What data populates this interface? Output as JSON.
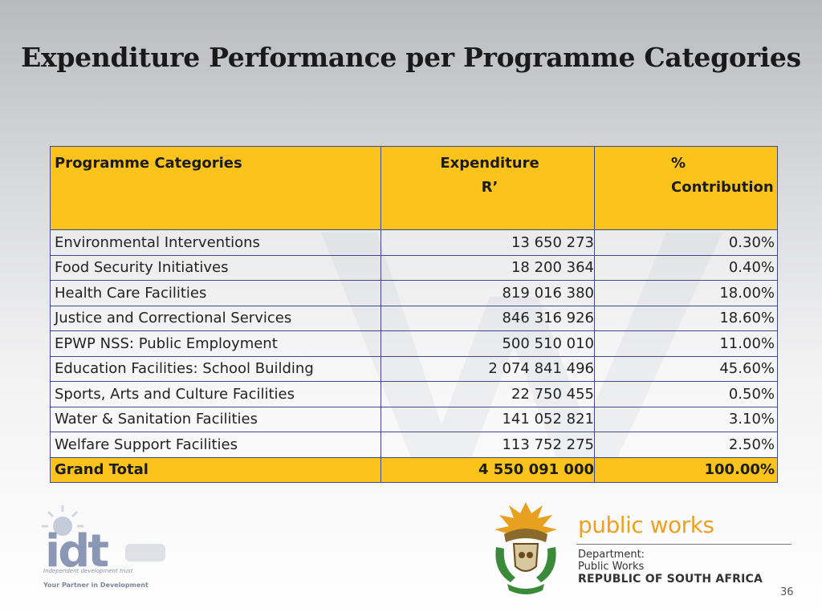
{
  "title": "Expenditure Performance per Programme Categories",
  "table": {
    "headers": {
      "category": "Programme Categories",
      "expenditure_line1": "Expenditure",
      "expenditure_line2": "R’",
      "pct_line1": "%",
      "pct_line2": "Contribution"
    },
    "rows": [
      {
        "category": "Environmental Interventions",
        "expenditure": "13 650 273",
        "pct": "0.30%"
      },
      {
        "category": "Food Security Initiatives",
        "expenditure": "18 200 364",
        "pct": "0.40%"
      },
      {
        "category": "Health Care Facilities",
        "expenditure": "819 016 380",
        "pct": "18.00%"
      },
      {
        "category": "Justice and Correctional Services",
        "expenditure": "846 316 926",
        "pct": "18.60%"
      },
      {
        "category": "EPWP NSS: Public Employment",
        "expenditure": "500 510 010",
        "pct": "11.00%"
      },
      {
        "category": "Education Facilities: School Building",
        "expenditure": "2 074 841 496",
        "pct": "45.60%"
      },
      {
        "category": "Sports, Arts and Culture Facilities",
        "expenditure": "22 750 455",
        "pct": "0.50%"
      },
      {
        "category": "Water & Sanitation Facilities",
        "expenditure": "141 052 821",
        "pct": "3.10%"
      },
      {
        "category": "Welfare Support Facilities",
        "expenditure": "113 752 275",
        "pct": "2.50%"
      }
    ],
    "total": {
      "category": "Grand Total",
      "expenditure": "4 550 091 000",
      "pct": "100.00%"
    }
  },
  "logos": {
    "idt": {
      "mark": "idt",
      "subtitle": "Independent development trust",
      "tagline": "Your Partner in Development"
    },
    "public_works": {
      "title": "public works",
      "dept_line1": "Department:",
      "dept_line2": "Public Works",
      "country": "REPUBLIC OF SOUTH AFRICA"
    }
  },
  "page_number": "36",
  "colors": {
    "header_bg": "#fbc31b",
    "border": "#3e4a8a",
    "pw_orange": "#f0a020"
  }
}
